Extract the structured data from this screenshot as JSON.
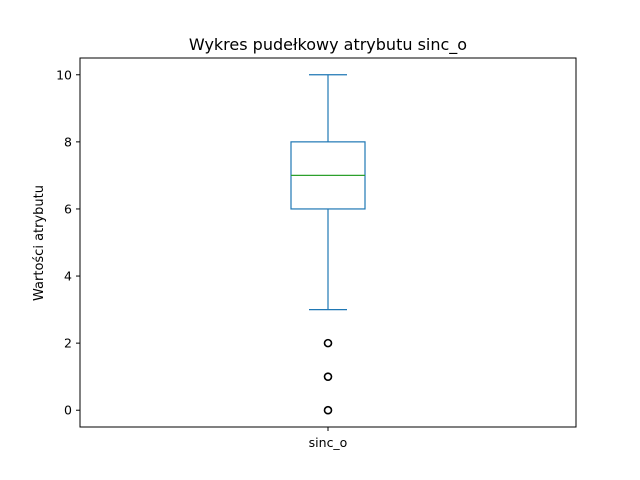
{
  "chart_data": {
    "type": "box",
    "title": "Wykres pudełkowy atrybutu sinc_o",
    "xlabel": "",
    "ylabel": "Wartości atrybutu",
    "ylim": [
      -0.5,
      10.5
    ],
    "yticks": [
      0,
      2,
      4,
      6,
      8,
      10
    ],
    "categories": [
      "sinc_o"
    ],
    "boxes": [
      {
        "category": "sinc_o",
        "whisker_low": 3,
        "q1": 6,
        "median": 7,
        "q3": 8,
        "whisker_high": 10,
        "outliers": [
          0,
          1,
          2
        ]
      }
    ],
    "colors": {
      "box": "#1f77b4",
      "median": "#2ca02c",
      "outlier": "#000000"
    },
    "grid": false,
    "legend": null
  }
}
